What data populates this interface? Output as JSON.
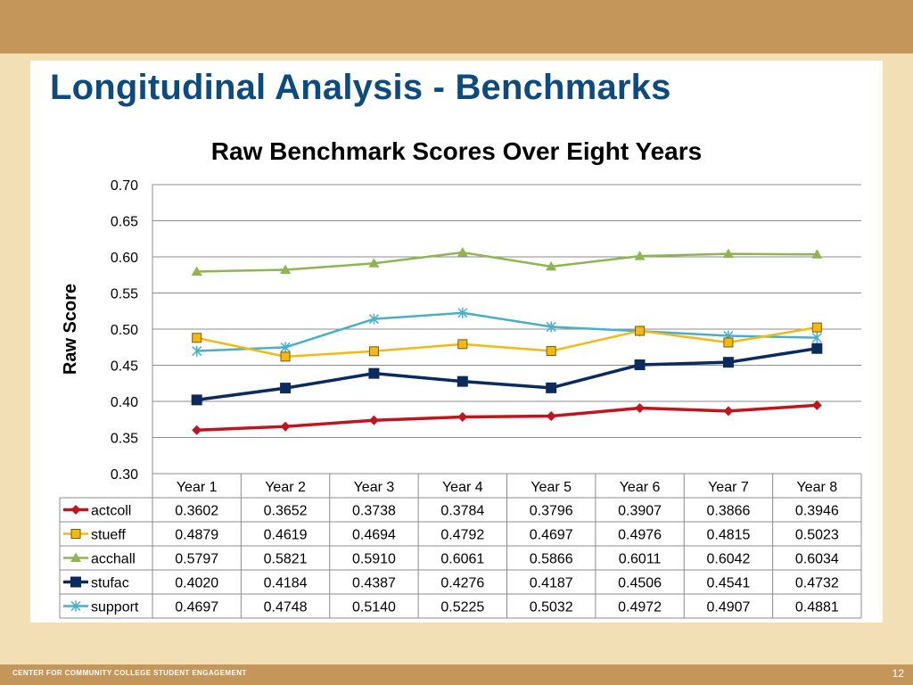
{
  "slide": {
    "title": "Longitudinal Analysis - Benchmarks",
    "footer_org": "CENTER FOR COMMUNITY COLLEGE STUDENT ENGAGEMENT",
    "page_number": "12"
  },
  "colors": {
    "top_band": "#c5965a",
    "background": "#f3dfb5",
    "title": "#0d4b7f"
  },
  "chart_data": {
    "type": "line",
    "title": "Raw Benchmark Scores Over Eight Years",
    "xlabel": "",
    "ylabel": "Raw Score",
    "ylim": [
      0.3,
      0.7
    ],
    "y_ticks": [
      "0.30",
      "0.35",
      "0.40",
      "0.45",
      "0.50",
      "0.55",
      "0.60",
      "0.65",
      "0.70"
    ],
    "grid": true,
    "legend": "data-table",
    "categories": [
      "Year 1",
      "Year 2",
      "Year 3",
      "Year 4",
      "Year 5",
      "Year 6",
      "Year 7",
      "Year 8"
    ],
    "series": [
      {
        "name": "actcoll",
        "color": "#c0151f",
        "marker": "diamond",
        "values": [
          0.3602,
          0.3652,
          0.3738,
          0.3784,
          0.3796,
          0.3907,
          0.3866,
          0.3946
        ],
        "labels": [
          "0.3602",
          "0.3652",
          "0.3738",
          "0.3784",
          "0.3796",
          "0.3907",
          "0.3866",
          "0.3946"
        ]
      },
      {
        "name": "stueff",
        "color": "#f2b915",
        "marker": "square",
        "values": [
          0.4879,
          0.4619,
          0.4694,
          0.4792,
          0.4697,
          0.4976,
          0.4815,
          0.5023
        ],
        "labels": [
          "0.4879",
          "0.4619",
          "0.4694",
          "0.4792",
          "0.4697",
          "0.4976",
          "0.4815",
          "0.5023"
        ]
      },
      {
        "name": "acchall",
        "color": "#8db653",
        "marker": "triangle",
        "values": [
          0.5797,
          0.5821,
          0.591,
          0.6061,
          0.5866,
          0.6011,
          0.6042,
          0.6034
        ],
        "labels": [
          "0.5797",
          "0.5821",
          "0.5910",
          "0.6061",
          "0.5866",
          "0.6011",
          "0.6042",
          "0.6034"
        ]
      },
      {
        "name": "stufac",
        "color": "#0b2a5e",
        "marker": "bigsquare",
        "values": [
          0.402,
          0.4184,
          0.4387,
          0.4276,
          0.4187,
          0.4506,
          0.4541,
          0.4732
        ],
        "labels": [
          "0.4020",
          "0.4184",
          "0.4387",
          "0.4276",
          "0.4187",
          "0.4506",
          "0.4541",
          "0.4732"
        ]
      },
      {
        "name": "support",
        "color": "#4aaec8",
        "marker": "star",
        "values": [
          0.4697,
          0.4748,
          0.514,
          0.5225,
          0.5032,
          0.4972,
          0.4907,
          0.4881
        ],
        "labels": [
          "0.4697",
          "0.4748",
          "0.5140",
          "0.5225",
          "0.5032",
          "0.4972",
          "0.4907",
          "0.4881"
        ]
      }
    ]
  }
}
